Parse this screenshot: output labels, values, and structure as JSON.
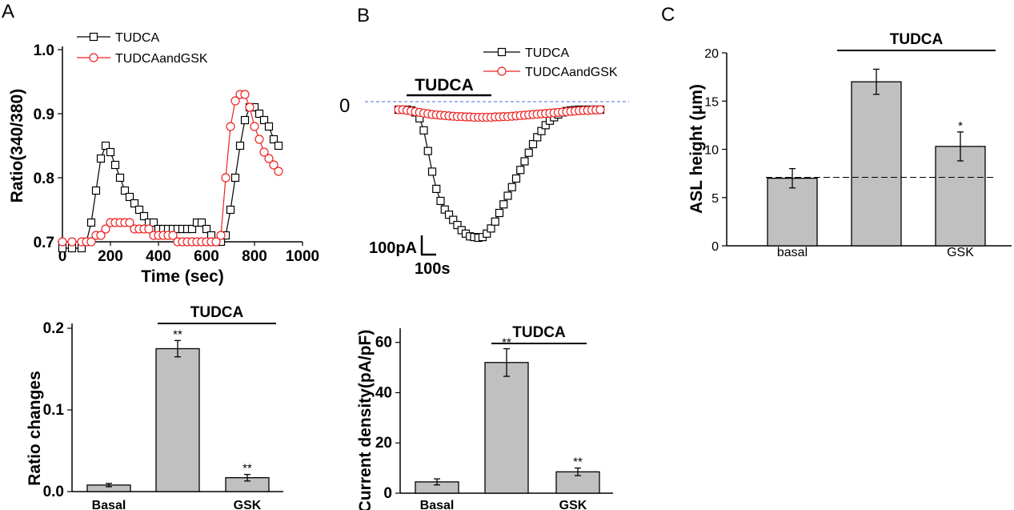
{
  "panels": {
    "A": "A",
    "B": "B",
    "C": "C"
  },
  "chart_data": [
    {
      "id": "A_top",
      "type": "line",
      "ylabel": "Ratio(340/380)",
      "xlabel": "Time (sec)",
      "xlim": [
        0,
        1000
      ],
      "ylim": [
        0.7,
        1.0
      ],
      "xticks": [
        "0",
        "200",
        "400",
        "600",
        "800",
        "1000"
      ],
      "yticks": [
        "0.7",
        "0.8",
        "0.9",
        "1.0"
      ],
      "legend": "top-left",
      "series": [
        {
          "name": "TUDCA",
          "color": "#000000",
          "marker": "square",
          "x": [
            0,
            40,
            80,
            100,
            120,
            140,
            160,
            180,
            200,
            220,
            240,
            260,
            280,
            300,
            320,
            340,
            360,
            380,
            400,
            420,
            440,
            460,
            480,
            500,
            520,
            540,
            560,
            580,
            600,
            620,
            640,
            660,
            680,
            700,
            720,
            740,
            760,
            780,
            800,
            820,
            840,
            860,
            880,
            900
          ],
          "y": [
            0.69,
            0.69,
            0.69,
            0.7,
            0.73,
            0.78,
            0.83,
            0.85,
            0.84,
            0.82,
            0.8,
            0.78,
            0.77,
            0.76,
            0.75,
            0.74,
            0.73,
            0.73,
            0.72,
            0.72,
            0.72,
            0.72,
            0.72,
            0.72,
            0.72,
            0.72,
            0.73,
            0.73,
            0.72,
            0.71,
            0.7,
            0.7,
            0.71,
            0.75,
            0.8,
            0.85,
            0.89,
            0.91,
            0.91,
            0.9,
            0.89,
            0.88,
            0.86,
            0.85
          ]
        },
        {
          "name": "TUDCAandGSK",
          "color": "#ee2222",
          "marker": "circle",
          "x": [
            0,
            40,
            80,
            100,
            120,
            140,
            160,
            180,
            200,
            220,
            240,
            260,
            280,
            300,
            320,
            340,
            360,
            380,
            400,
            420,
            440,
            460,
            480,
            500,
            520,
            540,
            560,
            580,
            600,
            620,
            640,
            660,
            680,
            700,
            720,
            740,
            760,
            780,
            800,
            820,
            840,
            860,
            880,
            900
          ],
          "y": [
            0.7,
            0.7,
            0.7,
            0.7,
            0.7,
            0.71,
            0.71,
            0.72,
            0.73,
            0.73,
            0.73,
            0.73,
            0.73,
            0.72,
            0.72,
            0.72,
            0.72,
            0.71,
            0.71,
            0.71,
            0.71,
            0.71,
            0.7,
            0.7,
            0.7,
            0.7,
            0.7,
            0.7,
            0.7,
            0.7,
            0.7,
            0.71,
            0.8,
            0.88,
            0.92,
            0.93,
            0.93,
            0.91,
            0.88,
            0.86,
            0.84,
            0.83,
            0.82,
            0.81
          ]
        }
      ]
    },
    {
      "id": "B_trace",
      "type": "line",
      "baseline_label": "0",
      "stim_label": "TUDCA",
      "scale_y": "100pA",
      "scale_x": "100s",
      "legend": "top-right",
      "series": [
        {
          "name": "TUDCA",
          "color": "#000000",
          "marker": "square",
          "x": [
            0,
            20,
            40,
            60,
            80,
            100,
            120,
            140,
            160,
            180,
            200,
            220,
            240,
            260,
            280,
            300,
            320,
            340,
            360,
            380,
            400,
            420,
            440,
            460,
            480,
            500,
            520,
            540,
            560,
            580,
            600,
            620,
            640,
            660,
            680,
            700,
            720,
            740,
            760,
            780,
            800,
            820,
            840,
            860,
            880,
            900,
            920,
            940,
            960
          ],
          "y": [
            0,
            0,
            0,
            -2,
            -8,
            -25,
            -60,
            -120,
            -180,
            -230,
            -265,
            -290,
            -305,
            -320,
            -335,
            -350,
            -360,
            -368,
            -370,
            -372,
            -370,
            -360,
            -345,
            -325,
            -300,
            -275,
            -250,
            -225,
            -200,
            -175,
            -150,
            -125,
            -100,
            -80,
            -62,
            -45,
            -32,
            -22,
            -14,
            -8,
            -4,
            -2,
            -1,
            0,
            0,
            0,
            0,
            0,
            0
          ]
        },
        {
          "name": "TUDCAandGSK",
          "color": "#ee2222",
          "marker": "circle",
          "x": [
            0,
            20,
            40,
            60,
            80,
            100,
            120,
            140,
            160,
            180,
            200,
            220,
            240,
            260,
            280,
            300,
            320,
            340,
            360,
            380,
            400,
            420,
            440,
            460,
            480,
            500,
            520,
            540,
            560,
            580,
            600,
            620,
            640,
            660,
            680,
            700,
            720,
            740,
            760,
            780,
            800,
            820,
            840,
            860,
            880,
            900,
            920,
            940,
            960
          ],
          "y": [
            0,
            0,
            -2,
            -4,
            -6,
            -8,
            -10,
            -12,
            -14,
            -15,
            -16,
            -17,
            -18,
            -19,
            -20,
            -20,
            -21,
            -21,
            -22,
            -22,
            -22,
            -22,
            -22,
            -21,
            -21,
            -20,
            -20,
            -19,
            -18,
            -17,
            -16,
            -15,
            -14,
            -13,
            -12,
            -11,
            -10,
            -9,
            -8,
            -7,
            -6,
            -5,
            -4,
            -3,
            -2,
            -2,
            -1,
            -1,
            0
          ]
        }
      ]
    },
    {
      "id": "C",
      "type": "bar",
      "ylabel": "ASL height (μm)",
      "ylim": [
        0,
        20
      ],
      "yticks": [
        "0",
        "5",
        "10",
        "15",
        "20"
      ],
      "categories": [
        "basal",
        "",
        "GSK"
      ],
      "values": [
        7.0,
        17.0,
        10.3
      ],
      "errors": [
        1.0,
        1.3,
        1.5
      ],
      "sig": [
        "",
        "",
        "*"
      ],
      "bracket_label": "TUDCA",
      "dashed_ref": 7.1
    },
    {
      "id": "A_bottom",
      "type": "bar",
      "ylabel": "Ratio changes",
      "ylim": [
        0,
        0.2
      ],
      "yticks": [
        "0.0",
        "0.1",
        "0.2"
      ],
      "categories": [
        "Basal",
        "",
        "GSK"
      ],
      "values": [
        0.008,
        0.175,
        0.017
      ],
      "errors": [
        0.002,
        0.01,
        0.004
      ],
      "sig": [
        "",
        "**",
        "**"
      ],
      "bracket_label": "TUDCA"
    },
    {
      "id": "B_bottom",
      "type": "bar",
      "ylabel": "Current density(pA/pF)",
      "ylim": [
        0,
        65
      ],
      "yticks": [
        "0",
        "20",
        "40",
        "60"
      ],
      "categories": [
        "Basal",
        "",
        "GSK"
      ],
      "values": [
        4.5,
        52.0,
        8.5
      ],
      "errors": [
        1.2,
        5.5,
        1.5
      ],
      "sig": [
        "",
        "**",
        "**"
      ],
      "bracket_label": "TUDCA"
    }
  ]
}
